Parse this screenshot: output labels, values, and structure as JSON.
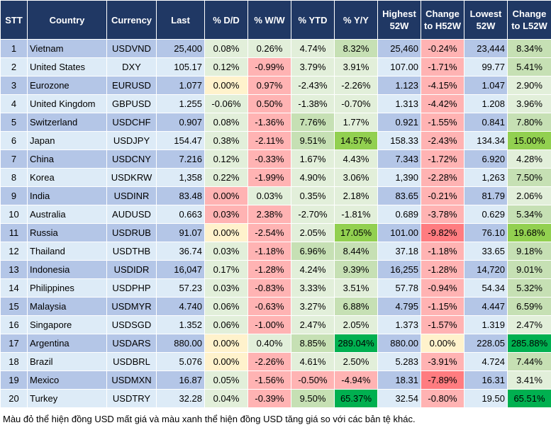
{
  "headers": [
    "STT",
    "Country",
    "Currency",
    "Last",
    "% D/D",
    "% W/W",
    "% YTD",
    "% Y/Y",
    "Highest 52W",
    "Change to H52W",
    "Lowest 52W",
    "Change to L52W"
  ],
  "colors": {
    "header": "#203864",
    "row_odd": "#b4c6e7",
    "row_even": "#ddebf7",
    "light_green": "#e2efda",
    "medium_green": "#c6e0b4",
    "strong_green": "#92d050",
    "dark_green": "#00b050",
    "pink": "#ffb3b3",
    "red": "#ff7c80",
    "yellow": "#fff2cc"
  },
  "rows": [
    {
      "cells": [
        "1",
        "Vietnam",
        "USDVND",
        "25,400",
        "0.08%",
        "0.26%",
        "4.74%",
        "8.32%",
        "25,460",
        "-0.24%",
        "23,444",
        "8.34%"
      ],
      "shade": [
        "L",
        "L",
        "L",
        "M",
        "R",
        "M"
      ]
    },
    {
      "cells": [
        "2",
        "United States",
        "DXY",
        "105.17",
        "0.12%",
        "-0.99%",
        "3.79%",
        "3.91%",
        "107.00",
        "-1.71%",
        "99.77",
        "5.41%"
      ],
      "shade": [
        "L",
        "R",
        "L",
        "L",
        "R",
        "M"
      ]
    },
    {
      "cells": [
        "3",
        "Eurozone",
        "EURUSD",
        "1.077",
        "0.00%",
        "0.97%",
        "-2.43%",
        "-2.26%",
        "1.123",
        "-4.15%",
        "1.047",
        "2.90%"
      ],
      "shade": [
        "Y",
        "R",
        "L",
        "L",
        "R",
        "L"
      ]
    },
    {
      "cells": [
        "4",
        "United Kingdom",
        "GBPUSD",
        "1.255",
        "-0.06%",
        "0.50%",
        "-1.38%",
        "-0.70%",
        "1.313",
        "-4.42%",
        "1.208",
        "3.96%"
      ],
      "shade": [
        "L",
        "R",
        "L",
        "L",
        "R",
        "L"
      ]
    },
    {
      "cells": [
        "5",
        "Switzerland",
        "USDCHF",
        "0.907",
        "0.08%",
        "-1.36%",
        "7.76%",
        "1.77%",
        "0.921",
        "-1.55%",
        "0.841",
        "7.80%"
      ],
      "shade": [
        "L",
        "R",
        "M",
        "L",
        "R",
        "M"
      ]
    },
    {
      "cells": [
        "6",
        "Japan",
        "USDJPY",
        "154.47",
        "0.38%",
        "-2.11%",
        "9.51%",
        "14.57%",
        "158.33",
        "-2.43%",
        "134.34",
        "15.00%"
      ],
      "shade": [
        "L",
        "R",
        "M",
        "S",
        "R",
        "S"
      ]
    },
    {
      "cells": [
        "7",
        "China",
        "USDCNY",
        "7.216",
        "0.12%",
        "-0.33%",
        "1.67%",
        "4.43%",
        "7.343",
        "-1.72%",
        "6.920",
        "4.28%"
      ],
      "shade": [
        "L",
        "R",
        "L",
        "L",
        "R",
        "L"
      ]
    },
    {
      "cells": [
        "8",
        "Korea",
        "USDKRW",
        "1,358",
        "0.22%",
        "-1.99%",
        "4.90%",
        "3.06%",
        "1,390",
        "-2.28%",
        "1,263",
        "7.50%"
      ],
      "shade": [
        "L",
        "R",
        "L",
        "L",
        "R",
        "M"
      ]
    },
    {
      "cells": [
        "9",
        "India",
        "USDINR",
        "83.48",
        "0.00%",
        "0.03%",
        "0.35%",
        "2.18%",
        "83.65",
        "-0.21%",
        "81.79",
        "2.06%"
      ],
      "shade": [
        "R",
        "L",
        "L",
        "L",
        "R",
        "L"
      ]
    },
    {
      "cells": [
        "10",
        "Australia",
        "AUDUSD",
        "0.663",
        "0.03%",
        "2.38%",
        "-2.70%",
        "-1.81%",
        "0.689",
        "-3.78%",
        "0.629",
        "5.34%"
      ],
      "shade": [
        "R",
        "R",
        "L",
        "L",
        "R",
        "M"
      ]
    },
    {
      "cells": [
        "11",
        "Russia",
        "USDRUB",
        "91.07",
        "0.00%",
        "-2.54%",
        "2.05%",
        "17.05%",
        "101.00",
        "-9.82%",
        "76.10",
        "19.68%"
      ],
      "shade": [
        "Y",
        "R",
        "L",
        "S",
        "RR",
        "S"
      ]
    },
    {
      "cells": [
        "12",
        "Thailand",
        "USDTHB",
        "36.74",
        "0.03%",
        "-1.18%",
        "6.96%",
        "8.44%",
        "37.18",
        "-1.18%",
        "33.65",
        "9.18%"
      ],
      "shade": [
        "L",
        "R",
        "M",
        "M",
        "R",
        "M"
      ]
    },
    {
      "cells": [
        "13",
        "Indonesia",
        "USDIDR",
        "16,047",
        "0.17%",
        "-1.28%",
        "4.24%",
        "9.39%",
        "16,255",
        "-1.28%",
        "14,720",
        "9.01%"
      ],
      "shade": [
        "L",
        "R",
        "L",
        "M",
        "R",
        "M"
      ]
    },
    {
      "cells": [
        "14",
        "Philippines",
        "USDPHP",
        "57.23",
        "0.03%",
        "-0.83%",
        "3.33%",
        "3.51%",
        "57.78",
        "-0.94%",
        "54.34",
        "5.32%"
      ],
      "shade": [
        "L",
        "R",
        "L",
        "L",
        "R",
        "M"
      ]
    },
    {
      "cells": [
        "15",
        "Malaysia",
        "USDMYR",
        "4.740",
        "0.06%",
        "-0.63%",
        "3.27%",
        "6.88%",
        "4.795",
        "-1.15%",
        "4.447",
        "6.59%"
      ],
      "shade": [
        "L",
        "R",
        "L",
        "M",
        "R",
        "M"
      ]
    },
    {
      "cells": [
        "16",
        "Singapore",
        "USDSGD",
        "1.352",
        "0.06%",
        "-1.00%",
        "2.47%",
        "2.05%",
        "1.373",
        "-1.57%",
        "1.319",
        "2.47%"
      ],
      "shade": [
        "L",
        "R",
        "L",
        "L",
        "R",
        "L"
      ]
    },
    {
      "cells": [
        "17",
        "Argentina",
        "USDARS",
        "880.00",
        "0.00%",
        "0.40%",
        "8.85%",
        "289.04%",
        "880.00",
        "0.00%",
        "228.05",
        "285.88%"
      ],
      "shade": [
        "Y",
        "L",
        "M",
        "D",
        "Y",
        "D"
      ]
    },
    {
      "cells": [
        "18",
        "Brazil",
        "USDBRL",
        "5.076",
        "0.00%",
        "-2.26%",
        "4.61%",
        "2.50%",
        "5.283",
        "-3.91%",
        "4.724",
        "7.44%"
      ],
      "shade": [
        "Y",
        "R",
        "L",
        "L",
        "R",
        "M"
      ]
    },
    {
      "cells": [
        "19",
        "Mexico",
        "USDMXN",
        "16.87",
        "0.05%",
        "-1.56%",
        "-0.50%",
        "-4.94%",
        "18.31",
        "-7.89%",
        "16.31",
        "3.41%"
      ],
      "shade": [
        "L",
        "R",
        "R",
        "R",
        "RR",
        "L"
      ]
    },
    {
      "cells": [
        "20",
        "Turkey",
        "USDTRY",
        "32.28",
        "0.04%",
        "-0.39%",
        "9.50%",
        "65.37%",
        "32.54",
        "-0.80%",
        "19.50",
        "65.51%"
      ],
      "shade": [
        "L",
        "R",
        "M",
        "D",
        "R",
        "D"
      ]
    }
  ],
  "footnote": "Màu đỏ thể hiện đồng USD mất giá và màu xanh thể hiện đồng USD tăng giá so với các bản tệ khác."
}
